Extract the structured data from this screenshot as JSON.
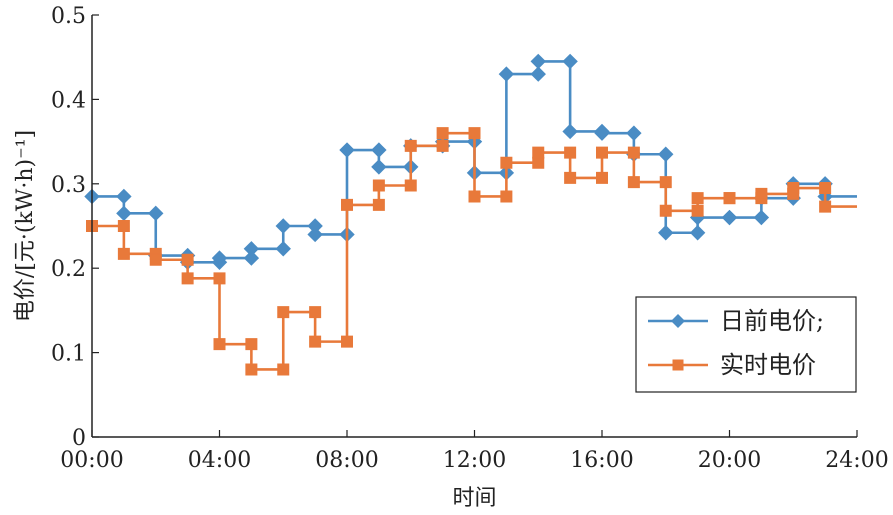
{
  "chart_data": {
    "type": "line",
    "step": true,
    "xlabel": "时间",
    "ylabel": "电价/[元·(kW·h)⁻¹]",
    "xlim": [
      0,
      24
    ],
    "ylim": [
      0,
      0.5
    ],
    "x_ticks": [
      0,
      4,
      8,
      12,
      16,
      20,
      24
    ],
    "x_tick_labels": [
      "00:00",
      "04:00",
      "08:00",
      "12:00",
      "16:00",
      "20:00",
      "24:00"
    ],
    "y_ticks": [
      0,
      0.1,
      0.2,
      0.3,
      0.4,
      0.5
    ],
    "y_tick_labels": [
      "0",
      "0.1",
      "0.2",
      "0.3",
      "0.4",
      "0.5"
    ],
    "grid": false,
    "legend_position": "bottom-right",
    "x": [
      0,
      1,
      2,
      3,
      4,
      5,
      6,
      7,
      8,
      9,
      10,
      11,
      12,
      13,
      14,
      15,
      16,
      17,
      18,
      19,
      20,
      21,
      22,
      23
    ],
    "series": [
      {
        "name": "日前电价;",
        "color": "#4a8cc4",
        "marker": "diamond",
        "values": [
          0.285,
          0.265,
          0.215,
          0.207,
          0.212,
          0.223,
          0.25,
          0.24,
          0.34,
          0.32,
          0.345,
          0.35,
          0.313,
          0.43,
          0.445,
          0.362,
          0.36,
          0.335,
          0.242,
          0.26,
          0.26,
          0.283,
          0.3,
          0.285
        ]
      },
      {
        "name": "实时电价",
        "color": "#e8793a",
        "marker": "square",
        "values": [
          0.25,
          0.217,
          0.21,
          0.188,
          0.11,
          0.08,
          0.148,
          0.113,
          0.275,
          0.298,
          0.345,
          0.36,
          0.285,
          0.325,
          0.337,
          0.307,
          0.337,
          0.302,
          0.268,
          0.283,
          0.283,
          0.288,
          0.295,
          0.273
        ]
      }
    ]
  }
}
